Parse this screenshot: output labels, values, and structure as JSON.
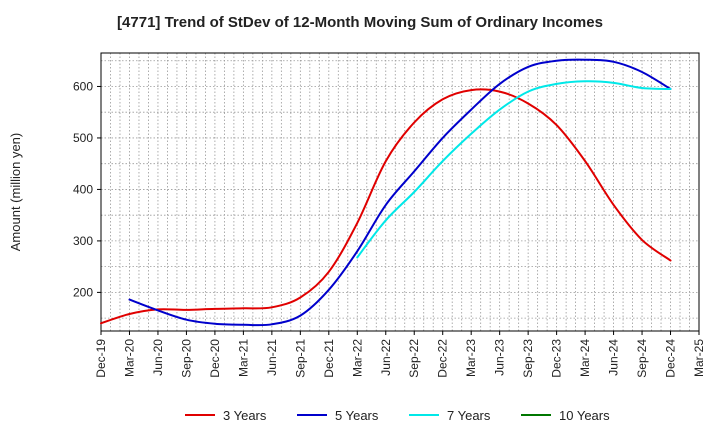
{
  "chart_data": {
    "type": "line",
    "title": "[4771]  Trend of StDev of 12-Month Moving Sum of Ordinary Incomes",
    "xlabel": "",
    "ylabel": "Amount (million yen)",
    "categories": [
      "Dec-19",
      "Mar-20",
      "Jun-20",
      "Sep-20",
      "Dec-20",
      "Mar-21",
      "Jun-21",
      "Sep-21",
      "Dec-21",
      "Mar-22",
      "Jun-22",
      "Sep-22",
      "Dec-22",
      "Mar-23",
      "Jun-23",
      "Sep-23",
      "Dec-23",
      "Mar-24",
      "Jun-24",
      "Sep-24",
      "Dec-24",
      "Mar-25"
    ],
    "ylim": [
      125,
      665
    ],
    "yticks": [
      200,
      300,
      400,
      500,
      600
    ],
    "grid": true,
    "legend_position": "bottom",
    "series": [
      {
        "name": "3 Years",
        "color": "#e00000",
        "values": [
          140,
          158,
          167,
          166,
          168,
          169,
          171,
          190,
          240,
          335,
          455,
          530,
          575,
          593,
          590,
          567,
          525,
          455,
          370,
          302,
          262,
          null
        ]
      },
      {
        "name": "5 Years",
        "color": "#0000cc",
        "values": [
          null,
          186,
          165,
          147,
          139,
          137,
          138,
          155,
          205,
          280,
          370,
          435,
          500,
          555,
          605,
          638,
          650,
          652,
          648,
          628,
          595,
          null
        ]
      },
      {
        "name": "7 Years",
        "color": "#00e8e8",
        "values": [
          null,
          null,
          null,
          null,
          null,
          null,
          null,
          null,
          null,
          268,
          340,
          395,
          455,
          508,
          555,
          590,
          605,
          610,
          607,
          597,
          595,
          null
        ]
      },
      {
        "name": "10 Years",
        "color": "#007700",
        "values": [
          null,
          null,
          null,
          null,
          null,
          null,
          null,
          null,
          null,
          null,
          null,
          null,
          null,
          null,
          null,
          null,
          null,
          null,
          null,
          null,
          null,
          null
        ]
      }
    ]
  }
}
